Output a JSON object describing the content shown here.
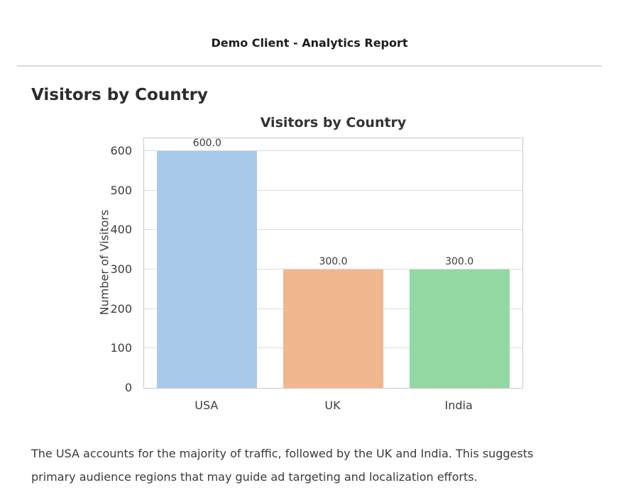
{
  "header": {
    "title": "Demo Client - Analytics Report"
  },
  "section": {
    "heading": "Visitors by Country"
  },
  "chart_data": {
    "type": "bar",
    "title": "Visitors by Country",
    "categories": [
      "USA",
      "UK",
      "India"
    ],
    "values": [
      600,
      300,
      300
    ],
    "bar_labels": [
      "600.0",
      "300.0",
      "300.0"
    ],
    "bar_colors": [
      "#a9c9ea",
      "#f1b78e",
      "#94d8a4"
    ],
    "xlabel": "",
    "ylabel": "Number of Visitors",
    "yticks": [
      0,
      100,
      200,
      300,
      400,
      500,
      600
    ],
    "ylim": [
      0,
      632
    ],
    "grid": true,
    "legend": false
  },
  "description": {
    "lines": [
      "The USA accounts for the majority of traffic, followed by the UK and India. This suggests",
      "primary audience regions that may guide ad targeting and localization efforts."
    ]
  }
}
